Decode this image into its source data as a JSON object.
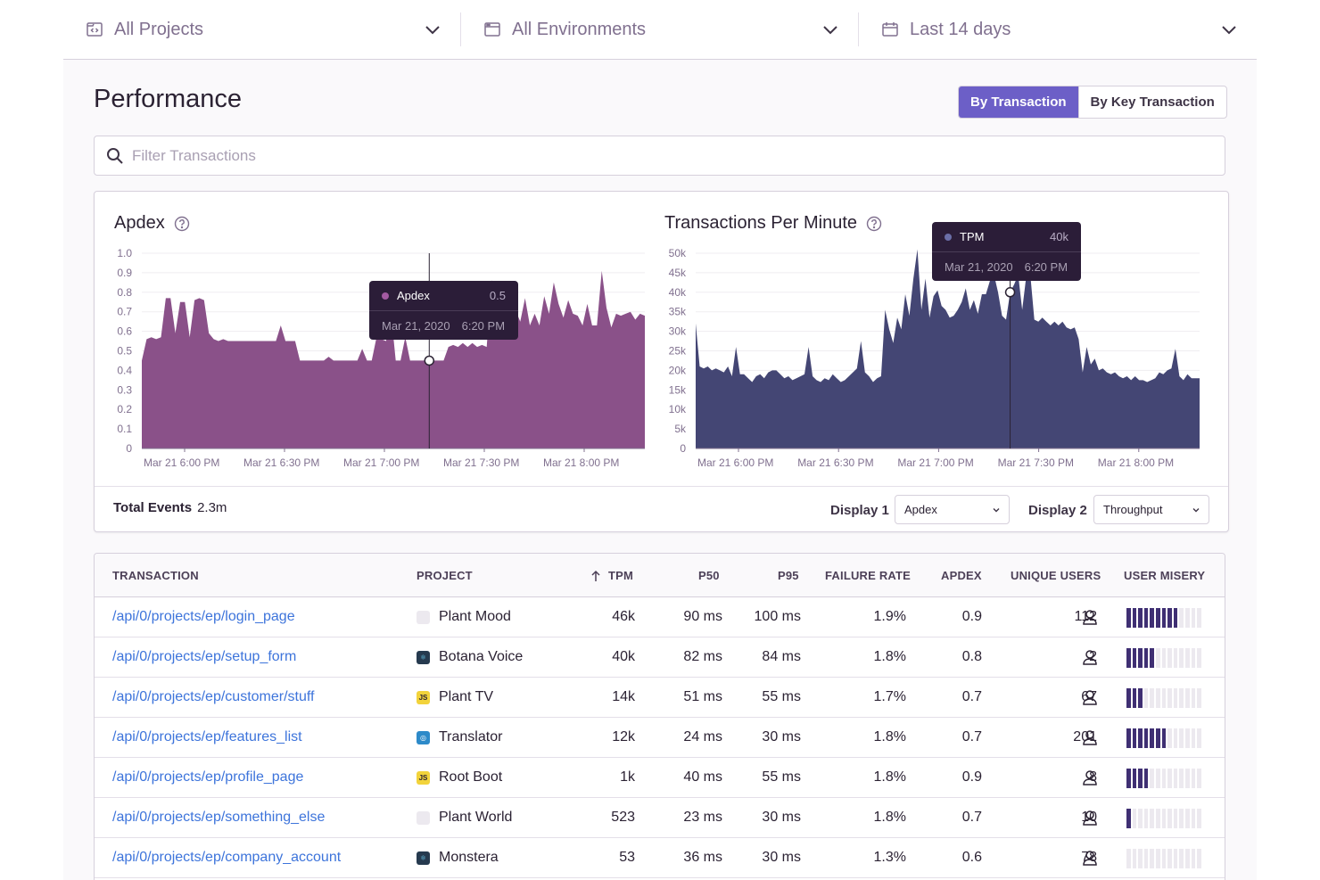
{
  "filters": {
    "projects": {
      "label": "All Projects",
      "icon": "project-icon"
    },
    "environments": {
      "label": "All Environments",
      "icon": "environment-icon"
    },
    "period": {
      "label": "Last 14 days",
      "icon": "calendar-icon"
    }
  },
  "page": {
    "title": "Performance",
    "views": [
      {
        "label": "By Transaction",
        "active": true
      },
      {
        "label": "By Key Transaction",
        "active": false
      }
    ],
    "search_placeholder": "Filter Transactions"
  },
  "charts": {
    "total_events_label": "Total Events",
    "total_events_value": "2.3m",
    "display1_label": "Display 1",
    "display1_value": "Apdex",
    "display2_label": "Display 2",
    "display2_value": "Throughput"
  },
  "chart_data": [
    {
      "type": "area",
      "title": "Apdex",
      "color": "#8a5189",
      "ylim": [
        0,
        1.0
      ],
      "y_ticks": [
        "1.0",
        "0.9",
        "0.8",
        "0.7",
        "0.6",
        "0.5",
        "0.4",
        "0.3",
        "0.2",
        "0.1",
        "0"
      ],
      "x_ticks": [
        "Mar 21 6:00 PM",
        "Mar 21 6:30 PM",
        "Mar 21 7:00 PM",
        "Mar 21 7:30 PM",
        "Mar 21 8:00 PM"
      ],
      "values": [
        0.45,
        0.56,
        0.57,
        0.56,
        0.57,
        0.77,
        0.77,
        0.59,
        0.75,
        0.75,
        0.57,
        0.76,
        0.77,
        0.76,
        0.59,
        0.56,
        0.55,
        0.56,
        0.55,
        0.55,
        0.55,
        0.55,
        0.55,
        0.55,
        0.55,
        0.55,
        0.55,
        0.55,
        0.55,
        0.63,
        0.55,
        0.55,
        0.55,
        0.45,
        0.45,
        0.45,
        0.45,
        0.45,
        0.45,
        0.47,
        0.45,
        0.45,
        0.45,
        0.45,
        0.45,
        0.45,
        0.51,
        0.45,
        0.45,
        0.57,
        0.56,
        0.55,
        0.7,
        0.45,
        0.45,
        0.57,
        0.45,
        0.45,
        0.45,
        0.45,
        0.45,
        0.45,
        0.45,
        0.45,
        0.52,
        0.53,
        0.52,
        0.54,
        0.52,
        0.54,
        0.52,
        0.53,
        0.52,
        0.86,
        0.85,
        0.63,
        0.77,
        0.64,
        0.71,
        0.65,
        0.77,
        0.63,
        0.69,
        0.63,
        0.78,
        0.69,
        0.85,
        0.74,
        0.67,
        0.76,
        0.69,
        0.68,
        0.63,
        0.74,
        0.63,
        0.63,
        0.91,
        0.72,
        0.62,
        0.69,
        0.68,
        0.69,
        0.7,
        0.66,
        0.69,
        0.68
      ],
      "tooltip": {
        "series": "Apdex",
        "value": "0.5",
        "date": "Mar 21, 2020",
        "time": "6:20 PM",
        "index": 60
      }
    },
    {
      "type": "area",
      "title": "Transactions Per Minute",
      "color": "#444674",
      "ylim": [
        0,
        50000
      ],
      "y_ticks": [
        "50k",
        "45k",
        "40k",
        "35k",
        "30k",
        "25k",
        "20k",
        "15k",
        "10k",
        "5k",
        "0"
      ],
      "x_ticks": [
        "Mar 21 6:00 PM",
        "Mar 21 6:30 PM",
        "Mar 21 7:00 PM",
        "Mar 21 7:30 PM",
        "Mar 21 8:00 PM"
      ],
      "values": [
        32000,
        21000,
        20500,
        21000,
        20000,
        20500,
        20000,
        19500,
        21000,
        18500,
        26000,
        19000,
        19000,
        18000,
        17000,
        18500,
        19000,
        18000,
        19500,
        20000,
        20000,
        19000,
        18000,
        18500,
        17500,
        18000,
        18500,
        19000,
        26000,
        18500,
        17500,
        17000,
        18000,
        17500,
        19000,
        18000,
        17000,
        17500,
        18500,
        19500,
        20500,
        27500,
        19500,
        18500,
        17000,
        18000,
        18500,
        35500,
        30500,
        27000,
        33500,
        30500,
        39500,
        34000,
        43500,
        51000,
        35500,
        43500,
        33500,
        39000,
        40500,
        36500,
        35500,
        33500,
        34000,
        35500,
        37500,
        41000,
        35500,
        38000,
        34500,
        39500,
        39500,
        43000,
        44500,
        40000,
        34000,
        33000,
        40000,
        42000,
        44500,
        35500,
        44000,
        44500,
        33000,
        32500,
        33500,
        32500,
        31500,
        32500,
        31500,
        32500,
        31000,
        30500,
        31000,
        28000,
        19500,
        26000,
        21500,
        23000,
        20000,
        20500,
        19500,
        19000,
        19500,
        18500,
        18000,
        18500,
        17500,
        18500,
        17500,
        17500,
        17000,
        17500,
        18000,
        19500,
        19000,
        20000,
        20500,
        25500,
        18500,
        17500,
        19000,
        18000,
        18000,
        18000
      ]
    }
  ],
  "tooltip2": {
    "series": "TPM",
    "value": "40k",
    "date": "Mar 21, 2020",
    "time": "6:20 PM",
    "index": 78
  },
  "table": {
    "headers": {
      "transaction": "TRANSACTION",
      "project": "PROJECT",
      "tpm": "TPM",
      "p50": "P50",
      "p95": "P95",
      "failure_rate": "FAILURE RATE",
      "apdex": "APDEX",
      "unique_users": "UNIQUE USERS",
      "user_misery": "USER MISERY"
    },
    "rows": [
      {
        "transaction": "/api/0/projects/ep/login_page",
        "project": "Plant Mood",
        "project_icon": "code-icon",
        "tpm": "46k",
        "p50": "90 ms",
        "p95": "100 ms",
        "failure_rate": "1.9%",
        "apdex": "0.9",
        "unique_users": "112",
        "misery_level": 0.7
      },
      {
        "transaction": "/api/0/projects/ep/setup_form",
        "project": "Botana Voice",
        "project_icon": "react-icon",
        "tpm": "40k",
        "p50": "82 ms",
        "p95": "84 ms",
        "failure_rate": "1.8%",
        "apdex": "0.8",
        "unique_users": "2",
        "misery_level": 0.4
      },
      {
        "transaction": "/api/0/projects/ep/customer/stuff",
        "project": "Plant TV",
        "project_icon": "js-icon",
        "tpm": "14k",
        "p50": "51 ms",
        "p95": "55 ms",
        "failure_rate": "1.7%",
        "apdex": "0.7",
        "unique_users": "67",
        "misery_level": 0.2
      },
      {
        "transaction": "/api/0/projects/ep/features_list",
        "project": "Translator",
        "project_icon": "electron-icon",
        "tpm": "12k",
        "p50": "24 ms",
        "p95": "30 ms",
        "failure_rate": "1.8%",
        "apdex": "0.7",
        "unique_users": "201",
        "misery_level": 0.5
      },
      {
        "transaction": "/api/0/projects/ep/profile_page",
        "project": "Root Boot",
        "project_icon": "js-icon",
        "tpm": "1k",
        "p50": "40 ms",
        "p95": "55 ms",
        "failure_rate": "1.8%",
        "apdex": "0.9",
        "unique_users": "8",
        "misery_level": 0.3
      },
      {
        "transaction": "/api/0/projects/ep/something_else",
        "project": "Plant World",
        "project_icon": "code-icon",
        "tpm": "523",
        "p50": "23 ms",
        "p95": "30 ms",
        "failure_rate": "1.8%",
        "apdex": "0.7",
        "unique_users": "10",
        "misery_level": 0.1
      },
      {
        "transaction": "/api/0/projects/ep/company_account",
        "project": "Monstera",
        "project_icon": "react-icon",
        "tpm": "53",
        "p50": "36 ms",
        "p95": "30 ms",
        "failure_rate": "1.3%",
        "apdex": "0.6",
        "unique_users": "78",
        "misery_level": 0.0
      }
    ]
  }
}
